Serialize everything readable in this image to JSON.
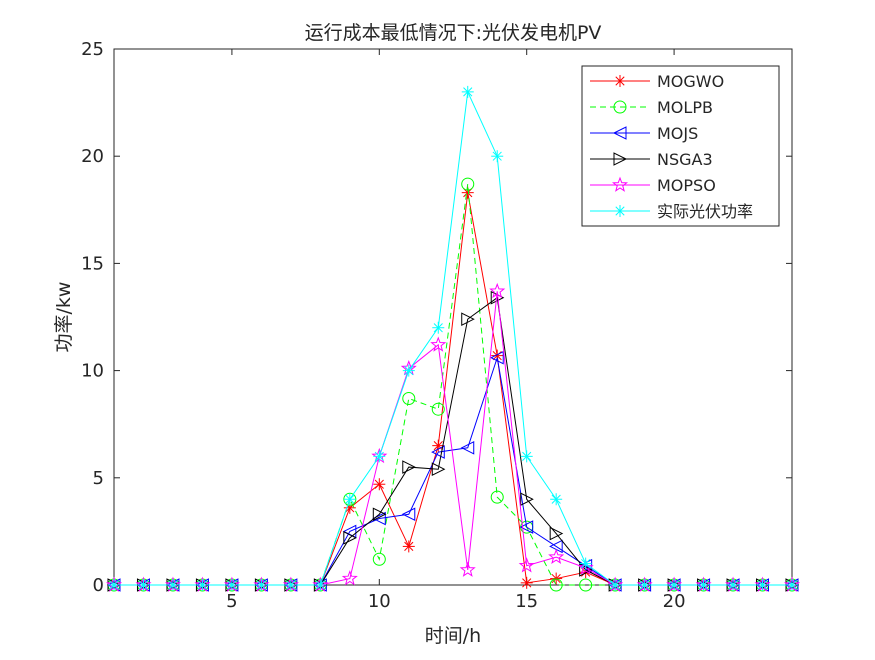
{
  "chart_data": {
    "type": "line",
    "title": "运行成本最低情况下:光伏发电机PV",
    "xlabel": "时间/h",
    "ylabel": "功率/kw",
    "xlim": [
      1,
      24
    ],
    "ylim": [
      0,
      25
    ],
    "xticks": [
      5,
      10,
      15,
      20
    ],
    "yticks": [
      0,
      5,
      10,
      15,
      20,
      25
    ],
    "grid": false,
    "legend_position": "top-right",
    "x": [
      1,
      2,
      3,
      4,
      5,
      6,
      7,
      8,
      9,
      10,
      11,
      12,
      13,
      14,
      15,
      16,
      17,
      18,
      19,
      20,
      21,
      22,
      23,
      24
    ],
    "series": [
      {
        "name": "MOGWO",
        "color": "#ff0000",
        "dash": "",
        "marker": "asterisk",
        "values": [
          0,
          0,
          0,
          0,
          0,
          0,
          0,
          0,
          3.6,
          4.7,
          1.8,
          6.5,
          18.3,
          10.7,
          0.1,
          0.3,
          0.6,
          0,
          0,
          0,
          0,
          0,
          0,
          0
        ]
      },
      {
        "name": "MOLPB",
        "color": "#00ff00",
        "dash": "6,4",
        "marker": "circle",
        "values": [
          0,
          0,
          0,
          0,
          0,
          0,
          0,
          0,
          4.0,
          1.2,
          8.7,
          8.2,
          18.7,
          4.1,
          2.7,
          0.0,
          0.0,
          0,
          0,
          0,
          0,
          0,
          0,
          0
        ]
      },
      {
        "name": "MOJS",
        "color": "#0000ff",
        "dash": "",
        "marker": "triangle-left",
        "values": [
          0,
          0,
          0,
          0,
          0,
          0,
          0,
          0,
          2.5,
          3.1,
          3.3,
          6.2,
          6.4,
          10.6,
          2.7,
          1.8,
          0.9,
          0,
          0,
          0,
          0,
          0,
          0,
          0
        ]
      },
      {
        "name": "NSGA3",
        "color": "#000000",
        "dash": "",
        "marker": "triangle-right",
        "values": [
          0,
          0,
          0,
          0,
          0,
          0,
          0,
          0,
          2.2,
          3.3,
          5.5,
          5.4,
          12.4,
          13.4,
          4.0,
          2.4,
          0.7,
          0,
          0,
          0,
          0,
          0,
          0,
          0
        ]
      },
      {
        "name": "MOPSO",
        "color": "#ff00ff",
        "dash": "",
        "marker": "pentagram",
        "values": [
          0,
          0,
          0,
          0,
          0,
          0,
          0,
          0,
          0.3,
          6.0,
          10.1,
          11.2,
          0.7,
          13.7,
          0.9,
          1.3,
          0.8,
          0,
          0,
          0,
          0,
          0,
          0,
          0
        ]
      },
      {
        "name": "实际光伏功率",
        "color": "#00ffff",
        "dash": "",
        "marker": "asterisk",
        "values": [
          0,
          0,
          0,
          0,
          0,
          0,
          0,
          0,
          4.0,
          6.0,
          10.0,
          12.0,
          23.0,
          20.0,
          6.0,
          4.0,
          1.0,
          0,
          0,
          0,
          0,
          0,
          0,
          0
        ]
      }
    ]
  }
}
